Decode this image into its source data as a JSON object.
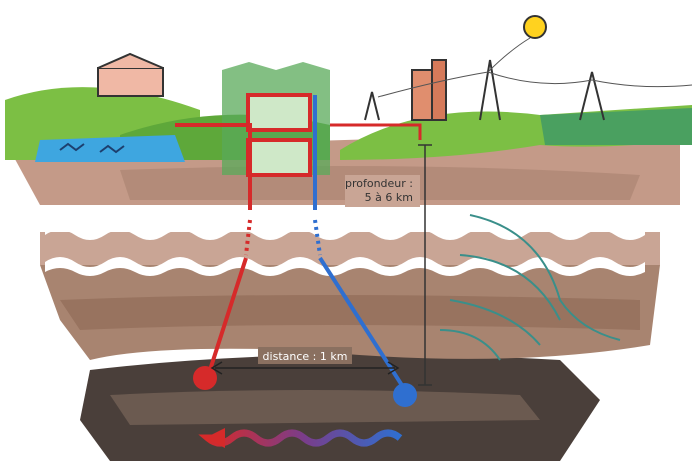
{
  "labels": {
    "depth": {
      "title": "profondeur :",
      "value": "5 à 6 km"
    },
    "distance": "distance : 1 km"
  }
}
